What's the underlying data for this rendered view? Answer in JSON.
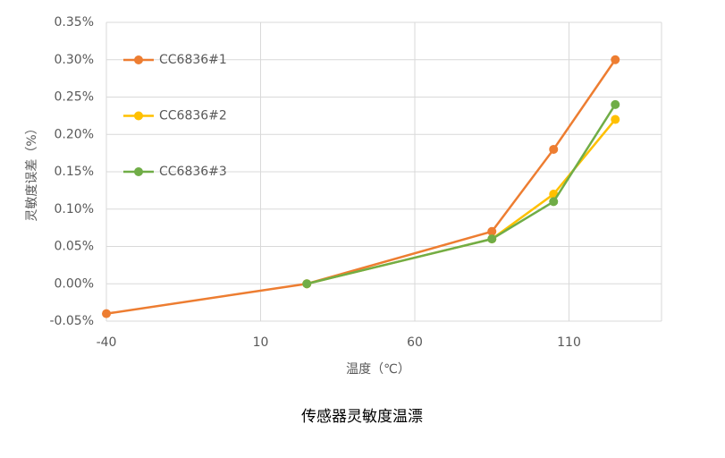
{
  "chart_data": {
    "type": "line",
    "title": "传感器灵敏度温漂",
    "x_label": "温度（℃）",
    "y_label": "灵敏度误差（%）",
    "x": [
      -40,
      25,
      85,
      105,
      125
    ],
    "series": [
      {
        "name": "CC6836#1",
        "color": "#ED7D31",
        "values": [
          -0.04,
          0,
          0.07,
          0.18,
          0.3
        ]
      },
      {
        "name": "CC6836#2",
        "color": "#FFC000",
        "values": [
          null,
          0,
          0.06,
          0.12,
          0.22
        ]
      },
      {
        "name": "CC6836#3",
        "color": "#70AD47",
        "values": [
          null,
          0,
          0.06,
          0.11,
          0.24
        ]
      }
    ],
    "xlim": [
      -40,
      140
    ],
    "xticks": [
      -40,
      10,
      60,
      110
    ],
    "ylim": [
      -0.05,
      0.35
    ],
    "yticks": [
      {
        "value": -0.05,
        "label": "-0.05%"
      },
      {
        "value": 0,
        "label": "0.00%"
      },
      {
        "value": 0.05,
        "label": "0.05%"
      },
      {
        "value": 0.1,
        "label": "0.10%"
      },
      {
        "value": 0.15,
        "label": "0.15%"
      },
      {
        "value": 0.2,
        "label": "0.20%"
      },
      {
        "value": 0.25,
        "label": "0.25%"
      },
      {
        "value": 0.3,
        "label": "0.30%"
      },
      {
        "value": 0.35,
        "label": "0.35%"
      }
    ],
    "grid": true,
    "legend": "upper-left"
  }
}
